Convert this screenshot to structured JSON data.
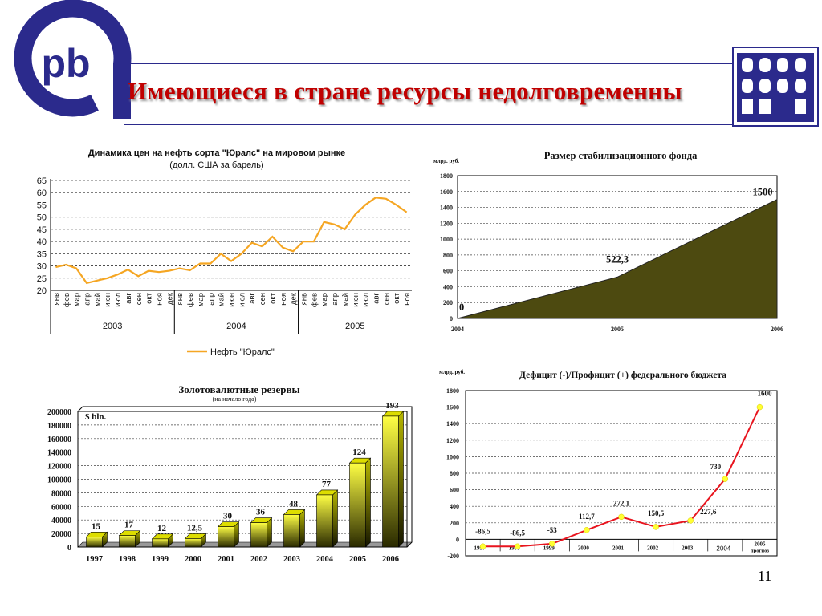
{
  "page": {
    "title": "Имеющиеся в стране ресурсы недолговременны",
    "logo_text": "pb",
    "page_number": "11",
    "colors": {
      "accent": "#2b2a8c",
      "title": "#c00000"
    }
  },
  "chart_data": [
    {
      "id": "oil",
      "type": "line",
      "title": "Динамика цен на нефть сорта \"Юралс\" на мировом рынке",
      "subtitle": "(долл. США за барель)",
      "ylim": [
        20,
        65
      ],
      "yticks": [
        20,
        25,
        30,
        35,
        40,
        45,
        50,
        55,
        60,
        65
      ],
      "grid": true,
      "legend_position": "bottom",
      "x": [
        "янв",
        "фев",
        "мар",
        "апр",
        "май",
        "июн",
        "июл",
        "авг",
        "сен",
        "окт",
        "ноя",
        "дек",
        "янв",
        "фев",
        "мар",
        "апр",
        "май",
        "июн",
        "июл",
        "авг",
        "сен",
        "окт",
        "ноя",
        "дек",
        "янв",
        "фев",
        "мар",
        "апр",
        "май",
        "июн",
        "июл",
        "авг",
        "сен",
        "окт",
        "ноя"
      ],
      "years": [
        {
          "label": "2003",
          "span": 12
        },
        {
          "label": "2004",
          "span": 12
        },
        {
          "label": "2005",
          "span": 11
        }
      ],
      "series": [
        {
          "name": "Нефть \"Юралс\"",
          "color": "#f5a623",
          "values": [
            29.5,
            30.5,
            29,
            23,
            24,
            25,
            26.5,
            28.5,
            25.8,
            28,
            27.5,
            28,
            29,
            28.2,
            31,
            31,
            35,
            32,
            35,
            39.5,
            38,
            42,
            37.5,
            36,
            40,
            40,
            48,
            47,
            45,
            51,
            55,
            58,
            57.5,
            55,
            52
          ]
        }
      ]
    },
    {
      "id": "stabfund",
      "type": "area",
      "title": "Размер стабилизационного фонда",
      "unit_label": "млрд. руб.",
      "ylim": [
        0,
        1800
      ],
      "yticks": [
        0,
        200,
        400,
        600,
        800,
        1000,
        1200,
        1400,
        1600,
        1800
      ],
      "grid": true,
      "x": [
        "2004",
        "2005",
        "2006"
      ],
      "values": [
        0,
        522.3,
        1500
      ],
      "data_labels": [
        "0",
        "522,3",
        "1500"
      ],
      "color": "#4d4a10"
    },
    {
      "id": "reserves",
      "type": "bar",
      "title": "Золотовалютные резервы",
      "subtitle": "(на начало года)",
      "unit_label": "$ bln.",
      "ylim": [
        0,
        200000
      ],
      "yticks": [
        0,
        20000,
        40000,
        60000,
        80000,
        100000,
        120000,
        140000,
        160000,
        180000,
        200000
      ],
      "grid": true,
      "categories": [
        "1997",
        "1998",
        "1999",
        "2000",
        "2001",
        "2002",
        "2003",
        "2004",
        "2005",
        "2006"
      ],
      "values": [
        15000,
        17000,
        12000,
        12500,
        30000,
        36000,
        48000,
        77000,
        124000,
        193000
      ],
      "data_labels": [
        "15",
        "17",
        "12",
        "12,5",
        "30",
        "36",
        "48",
        "77",
        "124",
        "193"
      ]
    },
    {
      "id": "budget",
      "type": "line",
      "title": "Дефицит (-)/Профицит (+) федерального бюджета",
      "unit_label": "млрд. руб.",
      "ylim": [
        -200,
        1800
      ],
      "yticks": [
        -200,
        0,
        200,
        400,
        600,
        800,
        1000,
        1200,
        1400,
        1600,
        1800
      ],
      "grid": true,
      "x": [
        "1997",
        "1998",
        "1999",
        "2000",
        "2001",
        "2002",
        "2003",
        "2004",
        "2005"
      ],
      "x_sublabel_2005": "прогноз",
      "values": [
        -86.5,
        -86.5,
        -53,
        112.7,
        272.1,
        150.5,
        227.6,
        730,
        1600
      ],
      "data_labels": [
        "-86,5",
        "-86,5",
        "-53",
        "112,7",
        "272,1",
        "150,5",
        "227,6",
        "730",
        "1600"
      ],
      "line_color": "#e8141e",
      "marker_color": "#ffff33"
    }
  ]
}
